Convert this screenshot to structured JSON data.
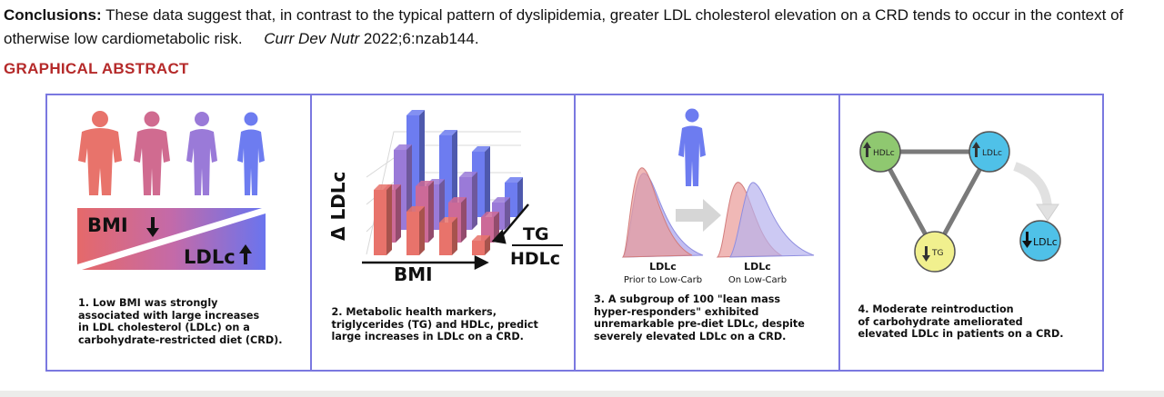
{
  "conclusions": {
    "label": "Conclusions:",
    "text": "These data suggest that, in contrast to the typical pattern of dyslipidemia, greater LDL cholesterol elevation on a CRD tends to occur in the context of otherwise low cardiometabolic risk.",
    "journal": "Curr Dev Nutr",
    "citation": "2022;6:nzab144."
  },
  "graphical_abstract": {
    "heading": "GRAPHICAL ABSTRACT",
    "panel1": {
      "bmi_label": "BMI",
      "ldl_label": "LDLc",
      "caption_lines": [
        "1. Low BMI was strongly",
        "associated with large increases",
        "in LDL cholesterol (LDLc) on a",
        "carbohydrate-restricted diet (CRD)."
      ]
    },
    "panel2": {
      "delta_ldl_label": "Δ LDLc",
      "bmi_axis_label": "BMI",
      "tg_label": "TG",
      "hdl_label": "HDLc",
      "caption_lines": [
        "2. Metabolic health markers,",
        "triglycerides (TG) and HDLc, predict",
        "large increases in LDLc on a CRD."
      ]
    },
    "panel3": {
      "left_title": "LDLc",
      "left_sub": "Prior to Low-Carb",
      "right_title": "LDLc",
      "right_sub": "On Low-Carb",
      "caption_lines": [
        "3. A subgroup of 100 \"lean mass",
        "hyper-responders\" exhibited",
        "unremarkable pre-diet LDLc, despite",
        "severely elevated LDLc on a CRD."
      ]
    },
    "panel4": {
      "hdl_node": "HDLc",
      "ldl_node": "LDLc",
      "tg_node": "TG",
      "ldl_result": "LDLc",
      "caption_lines": [
        "4. Moderate reintroduction",
        "of carbohydrate ameliorated",
        "elevated LDLc in patients on a CRD."
      ]
    },
    "colors": {
      "border": "#7a78e0",
      "red": "#e8736b",
      "pink": "#cc6a98",
      "purple": "#9a7ad8",
      "blue": "#6d7cf0",
      "heading": "#b52a2a"
    }
  }
}
